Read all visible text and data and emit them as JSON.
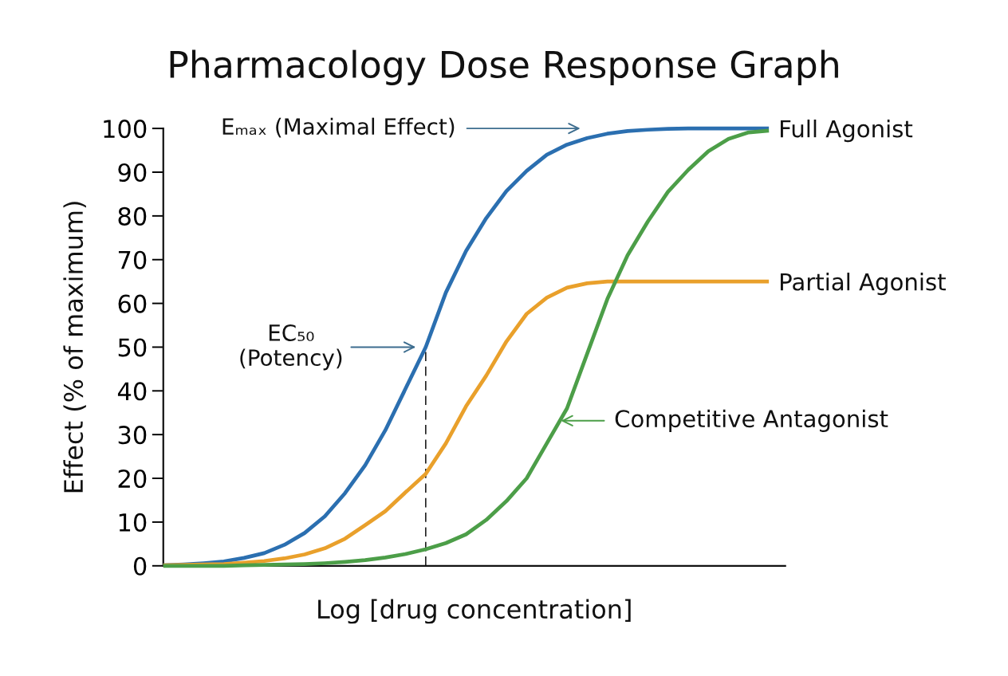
{
  "chart_data": {
    "type": "line",
    "title": "Pharmacology Dose Response Graph",
    "xlabel": "Log [drug concentration]",
    "ylabel": "Effect (% of maximum)",
    "categories": [
      null,
      null,
      null,
      null,
      null,
      null,
      null,
      null,
      null,
      null,
      null,
      null,
      null,
      null,
      null,
      null,
      null,
      null,
      null,
      null,
      null,
      null,
      null,
      null,
      null,
      null,
      null,
      null,
      null,
      null,
      null
    ],
    "series": [
      {
        "name": "Full Agonist",
        "color": "#2b6fb0",
        "values": [
          0.1,
          0.3,
          0.6,
          1.0,
          1.8,
          2.9,
          4.8,
          7.5,
          11.3,
          16.6,
          23,
          31,
          40.5,
          50,
          62.5,
          72,
          79.5,
          85.7,
          90.3,
          94,
          96.3,
          97.8,
          98.8,
          99.4,
          99.7,
          99.9,
          100,
          100,
          100,
          100,
          100
        ]
      },
      {
        "name": "Partial Agonist",
        "color": "#e9a02b",
        "values": [
          0.1,
          0.2,
          0.3,
          0.4,
          0.7,
          1.1,
          1.7,
          2.6,
          4,
          6.2,
          9.3,
          12.5,
          16.8,
          21,
          28,
          36.5,
          43.5,
          51.3,
          57.6,
          61.3,
          63.6,
          64.6,
          65,
          65,
          65,
          65,
          65,
          65,
          65,
          65,
          65
        ]
      },
      {
        "name": "Competitive Antagonist",
        "color": "#4c9e48",
        "values": [
          0,
          0,
          0,
          0,
          0.1,
          0.2,
          0.3,
          0.4,
          0.6,
          0.9,
          1.3,
          1.9,
          2.7,
          3.8,
          5.2,
          7.2,
          10.5,
          14.8,
          20,
          28,
          36,
          48.5,
          61,
          71,
          78.7,
          85.5,
          90.5,
          94.8,
          97.6,
          99.1,
          99.5
        ]
      }
    ],
    "ylim": [
      0,
      100
    ],
    "yticks": [
      0,
      10,
      20,
      30,
      40,
      50,
      60,
      70,
      80,
      90,
      100
    ],
    "tick_labels": "y",
    "annotations": [
      "Eₘₐₓ (Maximal Effect)",
      "EC₅₀\n(Potency)"
    ]
  }
}
